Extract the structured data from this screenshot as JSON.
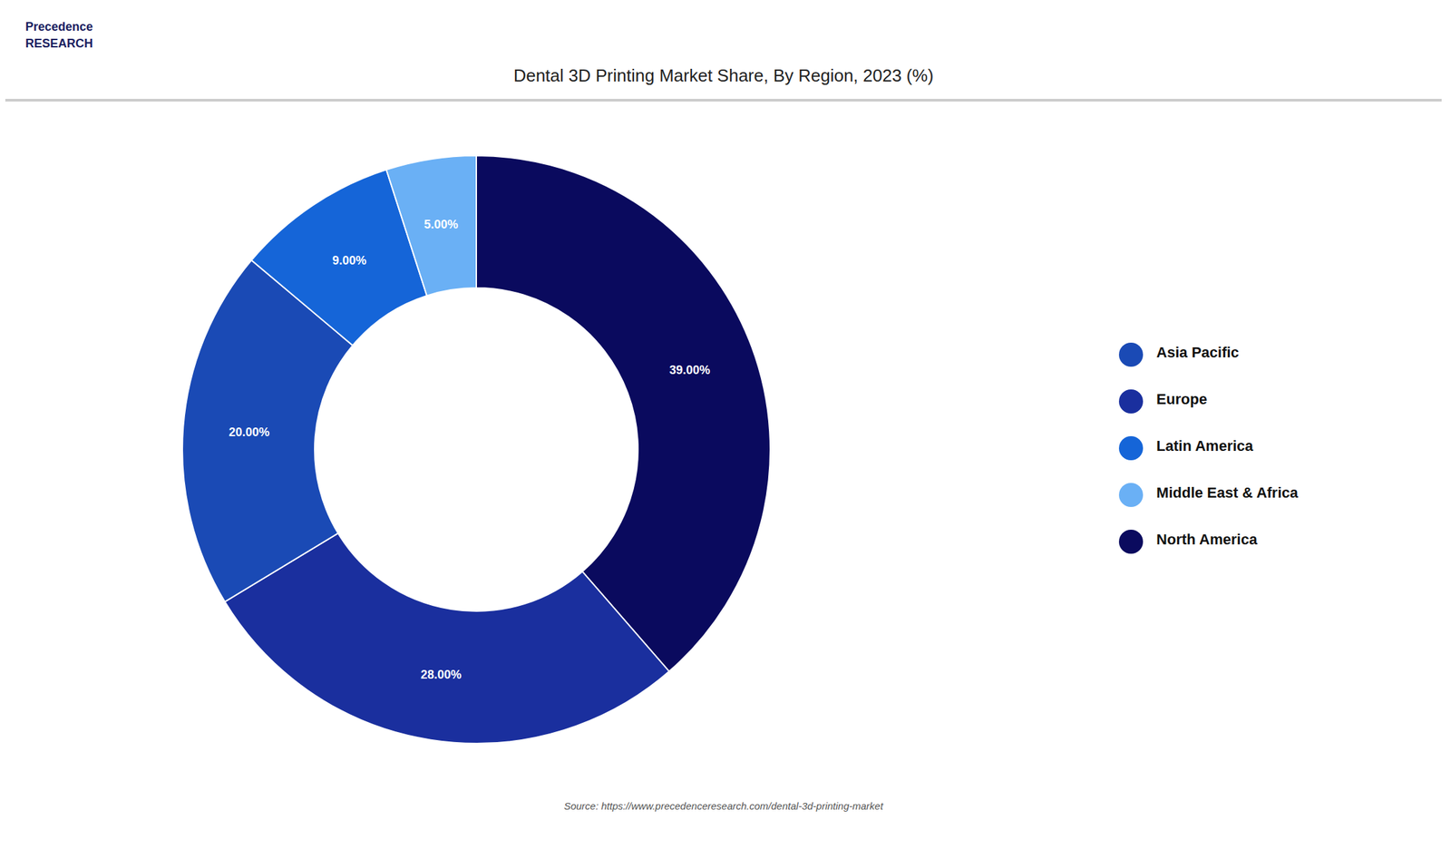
{
  "chart_data": {
    "type": "pie",
    "title": "Dental 3D Printing Market Share, By Region, 2023 (%)",
    "categories": [
      "North America",
      "Europe",
      "Asia Pacific",
      "Latin America",
      "Middle East & Africa"
    ],
    "values": [
      39.0,
      28.0,
      20.0,
      9.0,
      5.0
    ],
    "value_labels": [
      "39.00%",
      "28.00%",
      "20.00%",
      "9.00%",
      "5.00%"
    ],
    "colors": [
      "#0a0a5e",
      "#1a2f9e",
      "#1a4ab5",
      "#1565d8",
      "#6ab0f5"
    ],
    "data_labels": true,
    "legend": "right",
    "annotations": [
      "Source: https://www.precedenceresearch.com/dental-3d-printing-market",
      "Precedence\nRESEARCH"
    ]
  }
}
